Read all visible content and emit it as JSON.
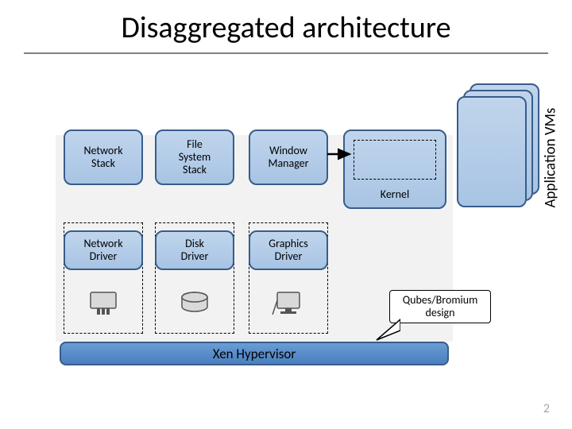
{
  "title": "Disaggregated architecture",
  "side_label": "Application VMs",
  "boxes": {
    "network_stack": "Network\nStack",
    "fs_stack": "File\nSystem\nStack",
    "window_manager": "Window\nManager",
    "kernel": "Kernel",
    "network_driver": "Network\nDriver",
    "disk_driver": "Disk\nDriver",
    "graphics_driver": "Graphics\nDriver"
  },
  "hypervisor": "Xen Hypervisor",
  "callout": "Qubes/Bromium\ndesign",
  "page_number": "2",
  "colors": {
    "box_border": "#385d8a",
    "box_fill_top": "#c0d5ec",
    "box_fill_bot": "#a8c4e4",
    "hyp_fill_top": "#6a9cd4",
    "hyp_fill_bot": "#4a7fbf",
    "gray_bg": "#f2f2f2",
    "underline": "#808080",
    "pgnum": "#a6a6a6"
  },
  "layout": {
    "title_fontsize": 38,
    "box_fontsize": 14,
    "hyp_fontsize": 17,
    "vlabel_fontsize": 19,
    "callout_fontsize": 14
  }
}
